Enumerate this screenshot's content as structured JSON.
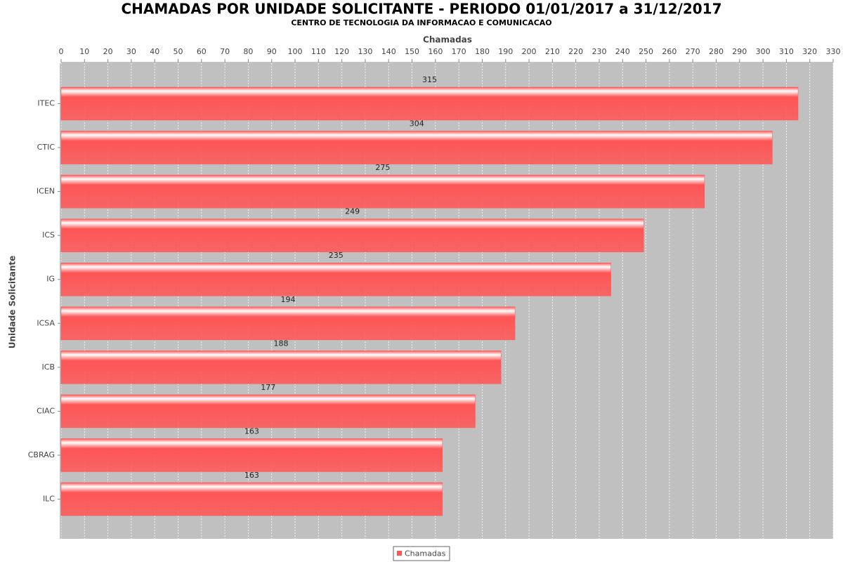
{
  "chart_data": {
    "type": "bar",
    "orientation": "horizontal",
    "title": "CHAMADAS POR UNIDADE SOLICITANTE - PERIODO 01/01/2017 a 31/12/2017",
    "subtitle": "CENTRO DE TECNOLOGIA DA INFORMACAO E COMUNICACAO",
    "x_label": "Chamadas",
    "y_label": "Unidade Solicitante",
    "categories": [
      "ITEC",
      "CTIC",
      "ICEN",
      "ICS",
      "IG",
      "ICSA",
      "ICB",
      "CIAC",
      "CBRAG",
      "ILC"
    ],
    "series": [
      {
        "name": "Chamadas",
        "color": "#ff5555",
        "values": [
          315,
          304,
          275,
          249,
          235,
          194,
          188,
          177,
          163,
          163
        ]
      }
    ],
    "xlim": [
      0,
      330
    ],
    "xticks": [
      0,
      10,
      20,
      30,
      40,
      50,
      60,
      70,
      80,
      90,
      100,
      110,
      120,
      130,
      140,
      150,
      160,
      170,
      180,
      190,
      200,
      210,
      220,
      230,
      240,
      250,
      260,
      270,
      280,
      290,
      300,
      310,
      320,
      330
    ],
    "grid": true,
    "legend": "bottom"
  }
}
